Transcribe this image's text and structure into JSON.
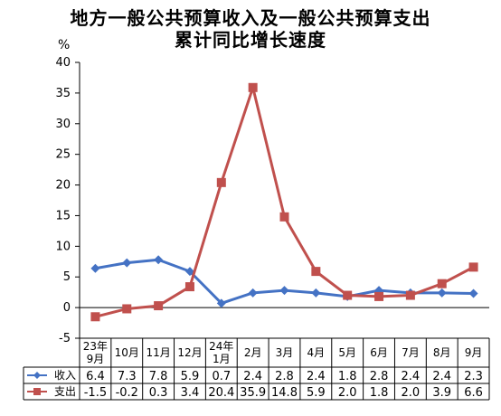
{
  "title_line1": "地方一般公共预算收入及一般公共预算支出",
  "title_line2": "累计同比增长速度",
  "unit": "%",
  "colors": {
    "income": "#4472C4",
    "expense": "#C0504D",
    "grid": "#000000"
  },
  "chart_data": {
    "type": "line",
    "categories": [
      "23年9月",
      "10月",
      "11月",
      "12月",
      "24年1月",
      "2月",
      "3月",
      "4月",
      "5月",
      "6月",
      "7月",
      "8月",
      "9月"
    ],
    "category_lines": [
      [
        "23年",
        "9月"
      ],
      [
        "10月"
      ],
      [
        "11月"
      ],
      [
        "12月"
      ],
      [
        "24年",
        "1月"
      ],
      [
        "2月"
      ],
      [
        "3月"
      ],
      [
        "4月"
      ],
      [
        "5月"
      ],
      [
        "6月"
      ],
      [
        "7月"
      ],
      [
        "8月"
      ],
      [
        "9月"
      ]
    ],
    "ylim": [
      -5,
      40
    ],
    "yticks": [
      -5,
      0,
      5,
      10,
      15,
      20,
      25,
      30,
      35,
      40
    ],
    "ylabel": "%",
    "grid": false,
    "legend": "data-table",
    "series": [
      {
        "name": "收入",
        "marker": "diamond",
        "values": [
          6.4,
          7.3,
          7.8,
          5.9,
          0.7,
          2.4,
          2.8,
          2.4,
          1.8,
          2.8,
          2.4,
          2.4,
          2.3
        ],
        "labels": [
          "6.4",
          "7.3",
          "7.8",
          "5.9",
          "0.7",
          "2.4",
          "2.8",
          "2.4",
          "1.8",
          "2.8",
          "2.4",
          "2.4",
          "2.3"
        ]
      },
      {
        "name": "支出",
        "marker": "square",
        "values": [
          -1.5,
          -0.2,
          0.3,
          3.4,
          20.4,
          35.9,
          14.8,
          5.9,
          2.0,
          1.8,
          2.0,
          3.9,
          6.6
        ],
        "labels": [
          "-1.5",
          "-0.2",
          "0.3",
          "3.4",
          "20.4",
          "35.9",
          "14.8",
          "5.9",
          "2.0",
          "1.8",
          "2.0",
          "3.9",
          "6.6"
        ]
      }
    ]
  }
}
